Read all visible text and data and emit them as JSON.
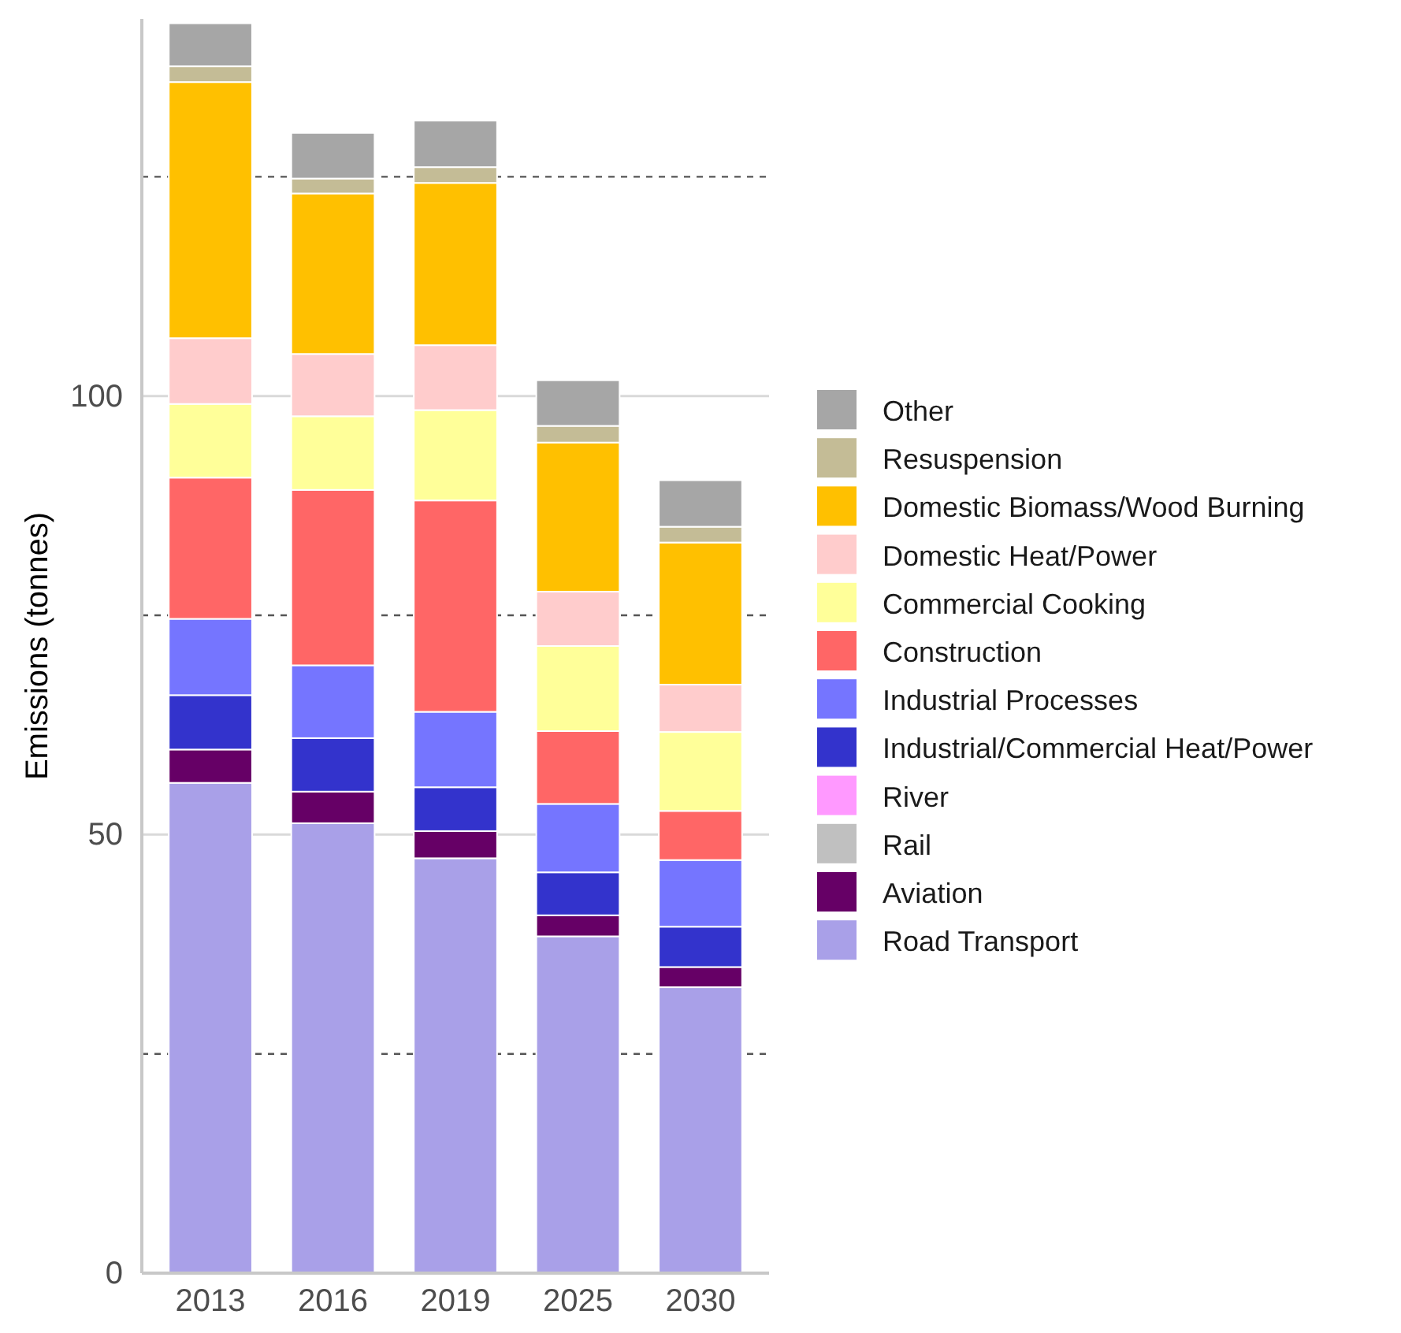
{
  "chart_data": {
    "type": "bar",
    "stacked": true,
    "ylabel": "Emissions (tonnes)",
    "categories": [
      "2013",
      "2016",
      "2019",
      "2025",
      "2030"
    ],
    "ylim": [
      0,
      143
    ],
    "yticks": [
      0,
      50,
      100
    ],
    "grid": "y",
    "legend": "right",
    "ref_lines": [
      {
        "axis": "y",
        "value": 25,
        "color": "#555555",
        "line_style": "dashed"
      },
      {
        "axis": "y",
        "value": 75,
        "color": "#555555",
        "line_style": "dashed"
      },
      {
        "axis": "y",
        "value": 125,
        "color": "#555555",
        "line_style": "dashed"
      }
    ],
    "series": [
      {
        "name": "Road Transport",
        "color": "#a9a0e8",
        "values": [
          55.9,
          51.3,
          47.3,
          38.4,
          32.6
        ]
      },
      {
        "name": "Aviation",
        "color": "#660066",
        "values": [
          3.8,
          3.6,
          3.1,
          2.4,
          2.3
        ]
      },
      {
        "name": "Rail",
        "color": "#c0c0c0",
        "values": [
          0,
          0,
          0,
          0,
          0
        ]
      },
      {
        "name": "River",
        "color": "#ff99ff",
        "values": [
          0,
          0,
          0,
          0,
          0
        ]
      },
      {
        "name": "Industrial/Commercial Heat/Power",
        "color": "#3333cc",
        "values": [
          6.2,
          6.1,
          5.0,
          4.9,
          4.6
        ]
      },
      {
        "name": "Industrial Processes",
        "color": "#7575ff",
        "values": [
          8.7,
          8.3,
          8.6,
          7.8,
          7.6
        ]
      },
      {
        "name": "Construction",
        "color": "#ff6666",
        "values": [
          16.1,
          20.0,
          24.1,
          8.3,
          5.6
        ]
      },
      {
        "name": "Commercial Cooking",
        "color": "#ffff99",
        "values": [
          8.4,
          8.4,
          10.3,
          9.7,
          9.0
        ]
      },
      {
        "name": "Domestic Heat/Power",
        "color": "#ffcccc",
        "values": [
          7.5,
          7.1,
          7.4,
          6.2,
          5.4
        ]
      },
      {
        "name": "Domestic Biomass/Wood Burning",
        "color": "#ffc000",
        "values": [
          29.2,
          18.3,
          18.5,
          17.0,
          16.2
        ]
      },
      {
        "name": "Resuspension",
        "color": "#c4bc96",
        "values": [
          1.8,
          1.7,
          1.8,
          1.9,
          1.8
        ]
      },
      {
        "name": "Other",
        "color": "#a6a6a6",
        "values": [
          4.9,
          5.2,
          5.3,
          5.2,
          5.3
        ]
      }
    ]
  }
}
